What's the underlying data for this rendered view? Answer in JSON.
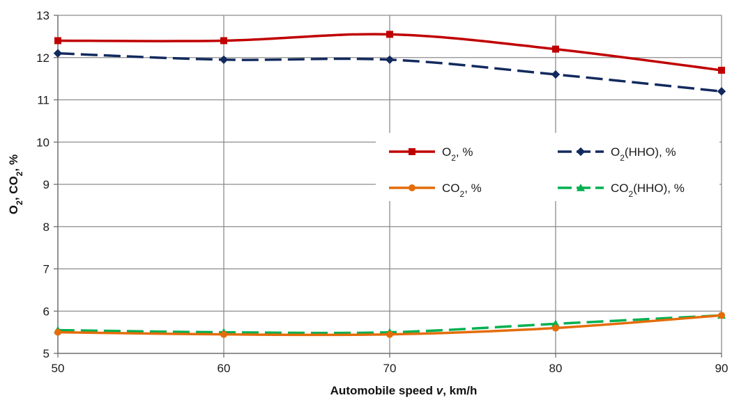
{
  "chart_data": {
    "type": "line",
    "x": [
      50,
      60,
      70,
      80,
      90
    ],
    "xlim": [
      50,
      90
    ],
    "ylim": [
      5,
      13
    ],
    "xticks": [
      "50",
      "60",
      "70",
      "80",
      "90"
    ],
    "yticks": [
      "5",
      "6",
      "7",
      "8",
      "9",
      "10",
      "11",
      "12",
      "13"
    ],
    "xlabel": {
      "prefix": "Automobile speed ",
      "var": "v",
      "suffix": ", km/h"
    },
    "ylabel": {
      "parts": [
        [
          "O",
          ""
        ],
        [
          "2",
          "sub"
        ],
        [
          ", CO",
          ""
        ],
        [
          "2",
          "sub"
        ],
        [
          ", %",
          ""
        ]
      ]
    },
    "grid": true,
    "legend_position": "center-right",
    "series": [
      {
        "name": "O2, %",
        "name_parts": [
          [
            "O",
            ""
          ],
          [
            "2",
            "sub"
          ],
          [
            ", %",
            ""
          ]
        ],
        "values": [
          12.4,
          12.4,
          12.55,
          12.2,
          11.7
        ],
        "color": "#c00000",
        "dash": "solid",
        "marker": "square"
      },
      {
        "name": "O2(HHO), %",
        "name_parts": [
          [
            "O",
            ""
          ],
          [
            "2",
            "sub"
          ],
          [
            "(HHO), %",
            ""
          ]
        ],
        "values": [
          12.1,
          11.95,
          11.95,
          11.6,
          11.2
        ],
        "color": "#132a5e",
        "dash": "dashed",
        "marker": "diamond"
      },
      {
        "name": "CO2, %",
        "name_parts": [
          [
            "CO",
            ""
          ],
          [
            "2",
            "sub"
          ],
          [
            ", %",
            ""
          ]
        ],
        "values": [
          5.5,
          5.45,
          5.45,
          5.6,
          5.9
        ],
        "color": "#e46c0a",
        "dash": "solid",
        "marker": "circle"
      },
      {
        "name": "CO2(HHO), %",
        "name_parts": [
          [
            "CO",
            ""
          ],
          [
            "2",
            "sub"
          ],
          [
            "(HHO), %",
            ""
          ]
        ],
        "values": [
          5.55,
          5.5,
          5.5,
          5.7,
          5.9
        ],
        "color": "#00b050",
        "dash": "dashed",
        "marker": "triangle"
      }
    ]
  }
}
